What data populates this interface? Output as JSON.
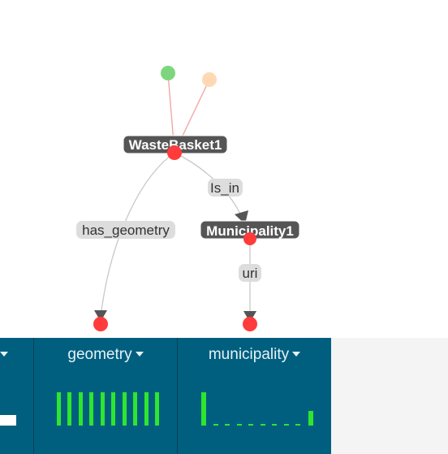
{
  "graph": {
    "nodes": {
      "wastebasket": "WasteBasket1",
      "municipality": "Municipality1"
    },
    "edges": {
      "has_geometry": "has_geometry",
      "is_in": "Is_in",
      "uri": "uri"
    },
    "colors": {
      "node": "#ff3b3b",
      "green_node": "#7dd67d",
      "peach_node": "#ffd9b3",
      "label_bg": "#555555",
      "edge_label_bg": "#dddddd"
    }
  },
  "panel": {
    "columns": [
      {
        "label": ""
      },
      {
        "label": "geometry"
      },
      {
        "label": "municipality"
      }
    ],
    "colors": {
      "background": "#005f7f",
      "bar": "#2ee62e"
    }
  }
}
